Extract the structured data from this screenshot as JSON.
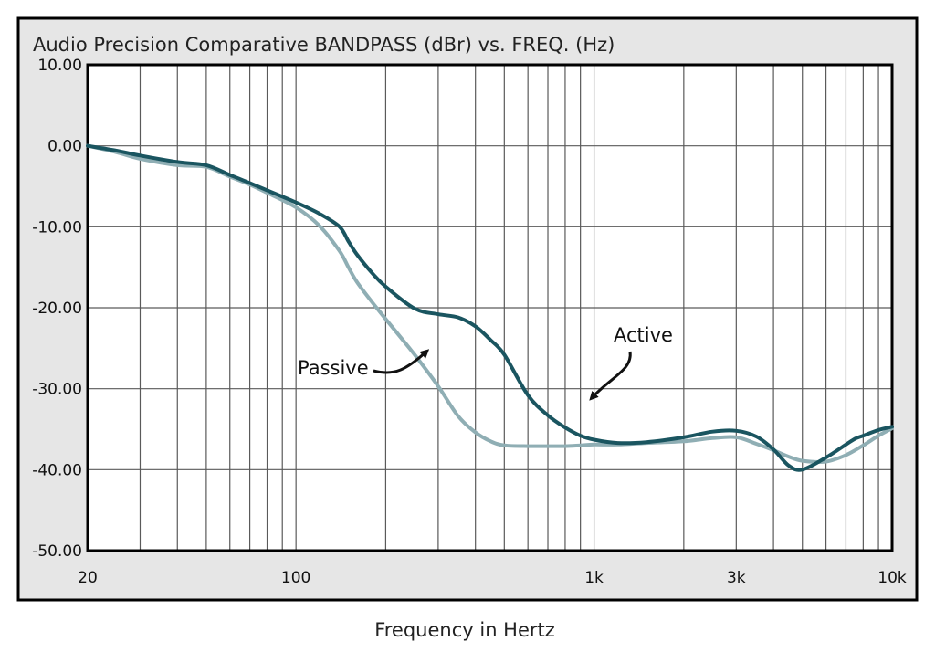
{
  "chart_data": {
    "type": "line",
    "title": "Audio Precision Comparative BANDPASS (dBr) vs. FREQ. (Hz)",
    "xlabel": "Frequency in Hertz",
    "ylabel": "",
    "x_scale": "log",
    "xlim": [
      20,
      10000
    ],
    "ylim": [
      -50,
      10
    ],
    "y_ticks": [
      10,
      0,
      -10,
      -20,
      -30,
      -40,
      -50
    ],
    "y_tick_labels": [
      "10.00",
      "0.00",
      "-10.00",
      "-20.00",
      "-30.00",
      "-40.00",
      "-50.00"
    ],
    "x_ticks": [
      20,
      100,
      1000,
      3000,
      10000
    ],
    "x_tick_labels": [
      "20",
      "100",
      "1k",
      "3k",
      "10k"
    ],
    "grid": true,
    "series": [
      {
        "name": "Active",
        "color": "#1a5560",
        "x": [
          20,
          25,
          30,
          40,
          50,
          60,
          70,
          80,
          100,
          120,
          140,
          150,
          160,
          180,
          200,
          250,
          300,
          350,
          400,
          450,
          500,
          600,
          700,
          800,
          900,
          1000,
          1200,
          1500,
          2000,
          2500,
          3000,
          3500,
          4000,
          4500,
          5000,
          6000,
          7000,
          7500,
          8000,
          9000,
          10000
        ],
        "values": [
          0,
          -0.6,
          -1.2,
          -2.0,
          -2.4,
          -3.6,
          -4.6,
          -5.5,
          -7.0,
          -8.4,
          -10.0,
          -11.8,
          -13.4,
          -15.7,
          -17.4,
          -20.1,
          -20.8,
          -21.2,
          -22.3,
          -24.0,
          -25.8,
          -30.8,
          -33.3,
          -34.8,
          -35.8,
          -36.3,
          -36.7,
          -36.6,
          -36.0,
          -35.3,
          -35.2,
          -35.9,
          -37.5,
          -39.5,
          -40.0,
          -38.5,
          -36.9,
          -36.2,
          -35.8,
          -35.1,
          -34.7
        ]
      },
      {
        "name": "Passive",
        "color": "#8faeb4",
        "x": [
          20,
          25,
          30,
          40,
          50,
          60,
          70,
          80,
          100,
          120,
          140,
          150,
          160,
          180,
          200,
          250,
          300,
          350,
          400,
          450,
          500,
          600,
          700,
          800,
          900,
          1000,
          1200,
          1500,
          2000,
          2500,
          3000,
          3500,
          4000,
          4500,
          5000,
          6000,
          7000,
          8000,
          9000,
          10000
        ],
        "values": [
          0,
          -0.8,
          -1.6,
          -2.4,
          -2.6,
          -3.8,
          -4.8,
          -5.8,
          -7.6,
          -9.9,
          -13.0,
          -15.0,
          -16.8,
          -19.3,
          -21.4,
          -25.8,
          -29.7,
          -33.4,
          -35.4,
          -36.5,
          -37.0,
          -37.1,
          -37.1,
          -37.1,
          -37.0,
          -36.9,
          -36.9,
          -36.7,
          -36.5,
          -36.1,
          -36.0,
          -36.8,
          -37.6,
          -38.4,
          -38.9,
          -39.0,
          -38.2,
          -37.0,
          -35.8,
          -34.9
        ]
      }
    ],
    "annotations": [
      {
        "text": "Active",
        "target_x": 950,
        "target_y": -31
      },
      {
        "text": "Passive",
        "target_x": 300,
        "target_y": -25
      }
    ],
    "colors": {
      "frame_bg": "#e6e6e6",
      "plot_bg": "#ffffff",
      "grid": "#5a5a5a",
      "axis": "#000000"
    }
  }
}
